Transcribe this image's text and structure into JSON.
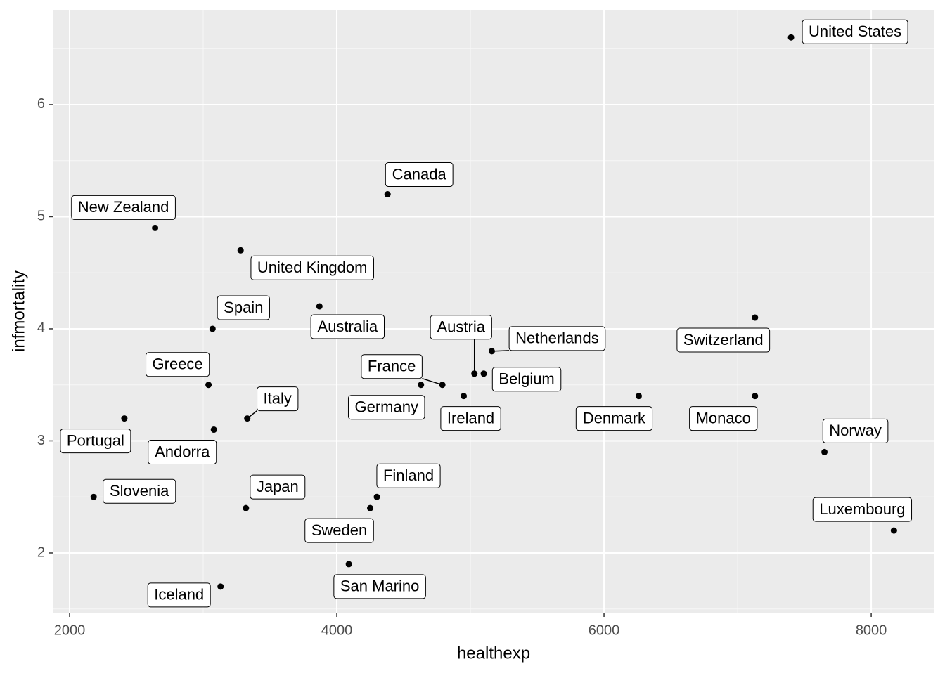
{
  "chart_data": {
    "type": "scatter",
    "x_label": "healthexp",
    "y_label": "infmortality",
    "labels": [
      "United States",
      "Canada",
      "New Zealand",
      "United Kingdom",
      "Australia",
      "Spain",
      "Switzerland",
      "Netherlands",
      "Austria",
      "Belgium",
      "France",
      "Germany",
      "Ireland",
      "Greece",
      "Denmark",
      "Monaco",
      "Italy",
      "Portugal",
      "Andorra",
      "Norway",
      "Slovenia",
      "Japan",
      "Finland",
      "Sweden",
      "Luxembourg",
      "San Marino",
      "Iceland"
    ],
    "x": [
      7400,
      4380,
      2640,
      3280,
      3870,
      3070,
      7130,
      5160,
      5030,
      5100,
      4790,
      4630,
      4950,
      3040,
      6260,
      7130,
      3330,
      2410,
      3080,
      7650,
      2180,
      3320,
      4300,
      4250,
      8170,
      4090,
      3130
    ],
    "values": [
      6.6,
      5.2,
      4.9,
      4.7,
      4.2,
      4.0,
      4.1,
      3.8,
      3.6,
      3.6,
      3.5,
      3.5,
      3.4,
      3.5,
      3.4,
      3.4,
      3.2,
      3.2,
      3.1,
      2.9,
      2.5,
      2.4,
      2.5,
      2.4,
      2.2,
      1.9,
      1.7
    ],
    "color": "#000000",
    "xlim": [
      1879,
      8468
    ],
    "ylim": [
      1.467,
      6.846
    ],
    "xticks": [
      2000,
      4000,
      6000,
      8000
    ],
    "yticks": [
      2,
      3,
      4,
      5,
      6
    ],
    "grid": true
  }
}
